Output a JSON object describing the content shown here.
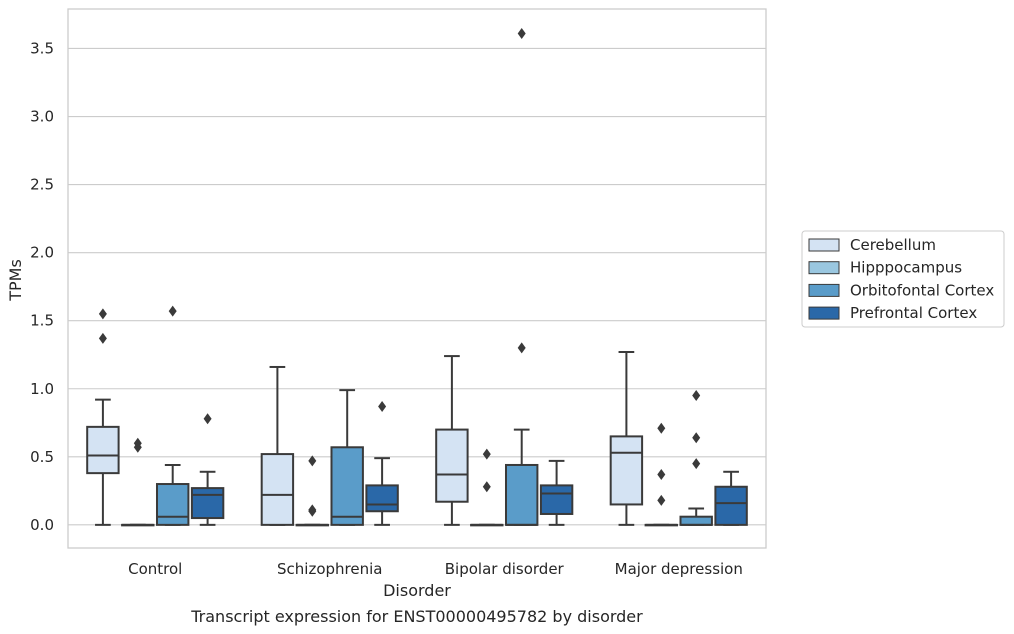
{
  "chart_data": {
    "type": "box",
    "xlabel": "Disorder",
    "ylabel": "TPMs",
    "caption": "Transcript expression for ENST00000495782 by disorder",
    "ylim": [
      -0.17,
      3.79
    ],
    "yticks": [
      0.0,
      0.5,
      1.0,
      1.5,
      2.0,
      2.5,
      3.0,
      3.5
    ],
    "ytick_labels": [
      "0.0",
      "0.5",
      "1.0",
      "1.5",
      "2.0",
      "2.5",
      "3.0",
      "3.5"
    ],
    "grid": "horizontal",
    "legend_position": "right",
    "categories": [
      "Control",
      "Schizophrenia",
      "Bipolar disorder",
      "Major depression"
    ],
    "series": [
      {
        "name": "Cerebellum",
        "color": "#d4e3f3",
        "boxes": [
          {
            "whislo": 0.0,
            "q1": 0.38,
            "med": 0.51,
            "q3": 0.72,
            "whishi": 0.92,
            "fliers": [
              1.55,
              1.37
            ]
          },
          {
            "whislo": 0.0,
            "q1": 0.0,
            "med": 0.22,
            "q3": 0.52,
            "whishi": 1.16,
            "fliers": []
          },
          {
            "whislo": 0.0,
            "q1": 0.17,
            "med": 0.37,
            "q3": 0.7,
            "whishi": 1.24,
            "fliers": []
          },
          {
            "whislo": 0.0,
            "q1": 0.15,
            "med": 0.53,
            "q3": 0.65,
            "whishi": 1.27,
            "fliers": []
          }
        ]
      },
      {
        "name": "Hipppocampus",
        "color": "#9ac7e0",
        "boxes": [
          {
            "whislo": 0.0,
            "q1": 0.0,
            "med": 0.0,
            "q3": 0.0,
            "whishi": 0.0,
            "fliers": [
              0.6,
              0.57
            ]
          },
          {
            "whislo": 0.0,
            "q1": 0.0,
            "med": 0.0,
            "q3": 0.0,
            "whishi": 0.0,
            "fliers": [
              0.47,
              0.11,
              0.1
            ]
          },
          {
            "whislo": 0.0,
            "q1": 0.0,
            "med": 0.0,
            "q3": 0.0,
            "whishi": 0.0,
            "fliers": [
              0.52,
              0.28
            ]
          },
          {
            "whislo": 0.0,
            "q1": 0.0,
            "med": 0.0,
            "q3": 0.0,
            "whishi": 0.0,
            "fliers": [
              0.71,
              0.37,
              0.18
            ]
          }
        ]
      },
      {
        "name": "Orbitofontal Cortex",
        "color": "#5a9cc9",
        "boxes": [
          {
            "whislo": 0.0,
            "q1": 0.0,
            "med": 0.06,
            "q3": 0.3,
            "whishi": 0.44,
            "fliers": [
              1.57
            ]
          },
          {
            "whislo": 0.0,
            "q1": 0.0,
            "med": 0.06,
            "q3": 0.57,
            "whishi": 0.99,
            "fliers": []
          },
          {
            "whislo": 0.0,
            "q1": 0.0,
            "med": 0.0,
            "q3": 0.44,
            "whishi": 0.7,
            "fliers": [
              1.3,
              3.61
            ]
          },
          {
            "whislo": 0.0,
            "q1": 0.0,
            "med": 0.0,
            "q3": 0.06,
            "whishi": 0.12,
            "fliers": [
              0.95,
              0.64,
              0.45
            ]
          }
        ]
      },
      {
        "name": "Prefrontal Cortex",
        "color": "#2a68a8",
        "boxes": [
          {
            "whislo": 0.0,
            "q1": 0.05,
            "med": 0.22,
            "q3": 0.27,
            "whishi": 0.39,
            "fliers": [
              0.78
            ]
          },
          {
            "whislo": 0.0,
            "q1": 0.1,
            "med": 0.15,
            "q3": 0.29,
            "whishi": 0.49,
            "fliers": [
              0.87
            ]
          },
          {
            "whislo": 0.0,
            "q1": 0.08,
            "med": 0.23,
            "q3": 0.29,
            "whishi": 0.47,
            "fliers": []
          },
          {
            "whislo": 0.0,
            "q1": 0.0,
            "med": 0.16,
            "q3": 0.28,
            "whishi": 0.39,
            "fliers": []
          }
        ]
      }
    ]
  }
}
